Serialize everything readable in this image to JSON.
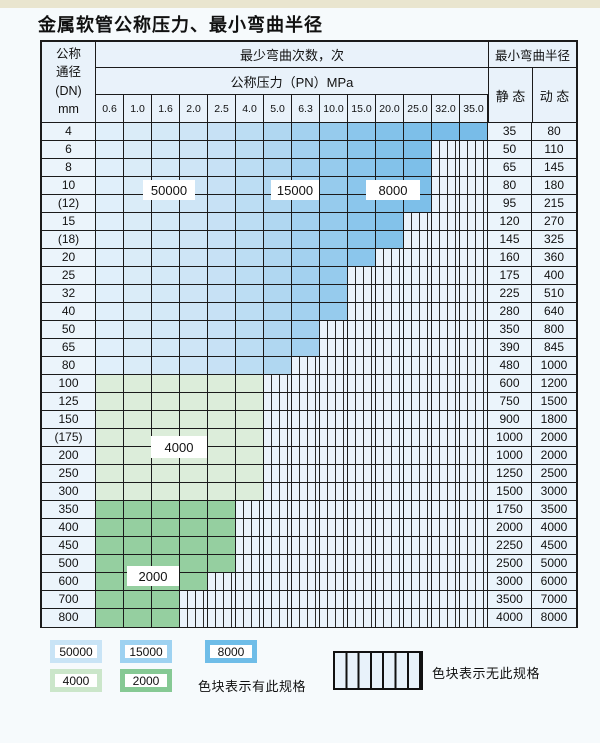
{
  "title": "金属软管公称压力、最小弯曲半径",
  "table": {
    "header": {
      "dn_label_lines": [
        "公称",
        "通径",
        "(DN)",
        "mm"
      ],
      "bend_cycles_label": "最少弯曲次数，次",
      "pressure_label": "公称压力（PN）MPa",
      "radius_label": "最小弯曲半径",
      "static_label": "静 态",
      "dynamic_label": "动 态",
      "pressures": [
        "0.6",
        "1.0",
        "1.6",
        "2.0",
        "2.5",
        "4.0",
        "5.0",
        "6.3",
        "10.0",
        "15.0",
        "20.0",
        "25.0",
        "32.0",
        "35.0"
      ]
    },
    "zone_labels": [
      "50000",
      "15000",
      "8000",
      "4000",
      "2000"
    ],
    "rows": [
      {
        "dn": "4",
        "colored": 14,
        "group": "blue",
        "static": "35",
        "dynamic": "80"
      },
      {
        "dn": "6",
        "colored": 12,
        "group": "blue",
        "static": "50",
        "dynamic": "110"
      },
      {
        "dn": "8",
        "colored": 12,
        "group": "blue",
        "static": "65",
        "dynamic": "145"
      },
      {
        "dn": "10",
        "colored": 12,
        "group": "blue",
        "static": "80",
        "dynamic": "180"
      },
      {
        "dn": "(12)",
        "colored": 12,
        "group": "blue",
        "static": "95",
        "dynamic": "215"
      },
      {
        "dn": "15",
        "colored": 11,
        "group": "blue",
        "static": "120",
        "dynamic": "270"
      },
      {
        "dn": "(18)",
        "colored": 11,
        "group": "blue",
        "static": "145",
        "dynamic": "325"
      },
      {
        "dn": "20",
        "colored": 10,
        "group": "blue",
        "static": "160",
        "dynamic": "360"
      },
      {
        "dn": "25",
        "colored": 9,
        "group": "blue",
        "static": "175",
        "dynamic": "400"
      },
      {
        "dn": "32",
        "colored": 9,
        "group": "blue",
        "static": "225",
        "dynamic": "510"
      },
      {
        "dn": "40",
        "colored": 9,
        "group": "blue",
        "static": "280",
        "dynamic": "640"
      },
      {
        "dn": "50",
        "colored": 8,
        "group": "blue",
        "static": "350",
        "dynamic": "800"
      },
      {
        "dn": "65",
        "colored": 8,
        "group": "blue",
        "static": "390",
        "dynamic": "845"
      },
      {
        "dn": "80",
        "colored": 7,
        "group": "blue",
        "static": "480",
        "dynamic": "1000"
      },
      {
        "dn": "100",
        "colored": 6,
        "group": "green4000",
        "static": "600",
        "dynamic": "1200"
      },
      {
        "dn": "125",
        "colored": 6,
        "group": "green4000",
        "static": "750",
        "dynamic": "1500"
      },
      {
        "dn": "150",
        "colored": 6,
        "group": "green4000",
        "static": "900",
        "dynamic": "1800"
      },
      {
        "dn": "(175)",
        "colored": 6,
        "group": "green4000",
        "static": "1000",
        "dynamic": "2000"
      },
      {
        "dn": "200",
        "colored": 6,
        "group": "green4000",
        "static": "1000",
        "dynamic": "2000"
      },
      {
        "dn": "250",
        "colored": 6,
        "group": "green4000",
        "static": "1250",
        "dynamic": "2500"
      },
      {
        "dn": "300",
        "colored": 6,
        "group": "green4000",
        "static": "1500",
        "dynamic": "3000"
      },
      {
        "dn": "350",
        "colored": 5,
        "group": "green2000",
        "static": "1750",
        "dynamic": "3500"
      },
      {
        "dn": "400",
        "colored": 5,
        "group": "green2000",
        "static": "2000",
        "dynamic": "4000"
      },
      {
        "dn": "450",
        "colored": 5,
        "group": "green2000",
        "static": "2250",
        "dynamic": "4500"
      },
      {
        "dn": "500",
        "colored": 5,
        "group": "green2000",
        "static": "2500",
        "dynamic": "5000"
      },
      {
        "dn": "600",
        "colored": 4,
        "group": "green2000",
        "static": "3000",
        "dynamic": "6000"
      },
      {
        "dn": "700",
        "colored": 3,
        "group": "green2000",
        "static": "3500",
        "dynamic": "7000"
      },
      {
        "dn": "800",
        "colored": 3,
        "group": "green2000",
        "static": "4000",
        "dynamic": "8000"
      }
    ]
  },
  "legend": {
    "items": [
      {
        "label": "50000",
        "color": "#C9E4F6"
      },
      {
        "label": "15000",
        "color": "#9ED2F1"
      },
      {
        "label": "8000",
        "color": "#6FBDE8"
      },
      {
        "label": "4000",
        "color": "#CBE6CA"
      },
      {
        "label": "2000",
        "color": "#86C994"
      }
    ],
    "has_spec_text": "色块表示有此规格",
    "no_spec_text": "色块表示无此规格"
  },
  "colors": {
    "grid": "#1b1b1b",
    "cell_bg": "#EBF4FB",
    "hatch_bg": "#EAF3FB",
    "blue_light_50000": "#D6EAF8",
    "blue_mid_15000": "#AFD9F3",
    "blue_deep_8000": "#7EC3EA",
    "green_4000": "#DCEDDA",
    "green_2000": "#95CFA0",
    "top_strip": "#E9E5CF"
  }
}
